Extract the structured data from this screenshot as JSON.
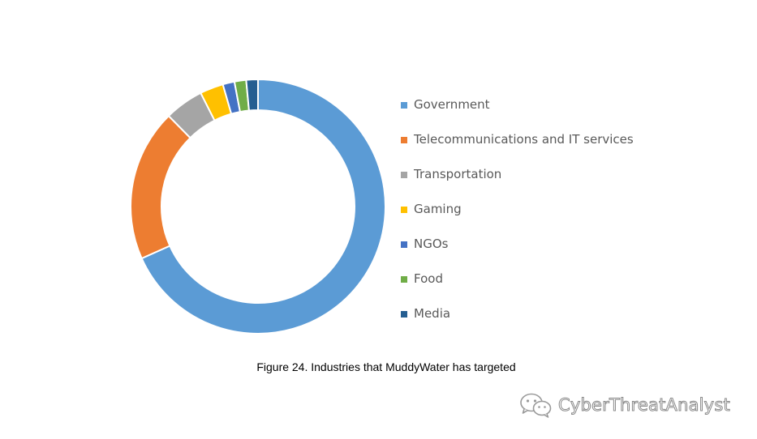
{
  "chart_data": {
    "type": "pie",
    "donut": true,
    "categories": [
      "Government",
      "Telecommunications and IT services",
      "Transportation",
      "Gaming",
      "NGOs",
      "Food",
      "Media"
    ],
    "values": [
      69,
      19.5,
      5,
      3,
      1.5,
      1.5,
      1.5
    ],
    "colors": [
      "#5B9BD5",
      "#ED7D31",
      "#A5A5A5",
      "#FFC000",
      "#4472C4",
      "#70AD47",
      "#255E91"
    ],
    "legend_position": "right"
  },
  "caption": "Figure 24. Industries that MuddyWater has targeted",
  "watermark": {
    "text": "CyberThreatAnalyst",
    "icon": "wechat-icon"
  }
}
